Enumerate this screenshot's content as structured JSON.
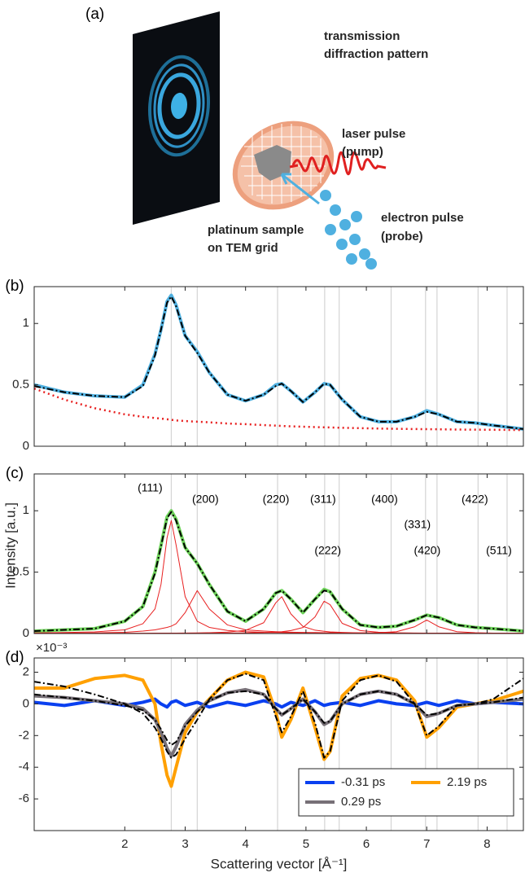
{
  "panel_a": {
    "label": "(a)",
    "pattern_label": [
      "transmission",
      "diffraction pattern"
    ],
    "laser_label": [
      "laser pulse",
      "(pump)"
    ],
    "electron_label": [
      "electron pulse",
      "(probe)"
    ],
    "sample_label": [
      "platinum sample",
      "on TEM grid"
    ]
  },
  "chart_data": [
    {
      "type": "line",
      "panel": "(b)",
      "x": [
        0.5,
        1,
        1.5,
        2,
        2.3,
        2.5,
        2.6,
        2.7,
        2.77,
        2.85,
        3.0,
        3.2,
        3.4,
        3.7,
        4.0,
        4.3,
        4.5,
        4.6,
        4.75,
        4.95,
        5.15,
        5.3,
        5.4,
        5.6,
        5.9,
        6.2,
        6.5,
        6.8,
        7.0,
        7.2,
        7.5,
        7.8,
        8.1,
        8.6
      ],
      "xlim": [
        0.5,
        8.6
      ],
      "xticks": [
        2,
        3,
        4,
        5,
        6,
        7,
        8
      ],
      "ylim": [
        0,
        1.3
      ],
      "yticks": [
        0,
        0.5,
        1
      ],
      "series": [
        {
          "color": "#4fb0e0",
          "linestyle": "solid-thick",
          "values": [
            0.5,
            0.44,
            0.41,
            0.4,
            0.5,
            0.75,
            0.95,
            1.18,
            1.23,
            1.15,
            0.9,
            0.77,
            0.6,
            0.42,
            0.37,
            0.42,
            0.5,
            0.51,
            0.45,
            0.36,
            0.44,
            0.51,
            0.5,
            0.38,
            0.24,
            0.2,
            0.2,
            0.24,
            0.29,
            0.26,
            0.2,
            0.19,
            0.17,
            0.14
          ]
        },
        {
          "color": "#000000",
          "linestyle": "dashdot",
          "values": [
            0.49,
            0.44,
            0.41,
            0.4,
            0.49,
            0.74,
            0.95,
            1.17,
            1.22,
            1.14,
            0.9,
            0.76,
            0.6,
            0.42,
            0.37,
            0.42,
            0.49,
            0.51,
            0.45,
            0.36,
            0.44,
            0.51,
            0.5,
            0.38,
            0.24,
            0.2,
            0.2,
            0.24,
            0.28,
            0.26,
            0.2,
            0.19,
            0.17,
            0.14
          ]
        },
        {
          "color": "#e82020",
          "linestyle": "dotted",
          "values": [
            0.47,
            0.38,
            0.31,
            0.26,
            0.24,
            0.23,
            0.225,
            0.22,
            0.215,
            0.21,
            0.205,
            0.2,
            0.195,
            0.185,
            0.18,
            0.172,
            0.168,
            0.165,
            0.162,
            0.159,
            0.156,
            0.154,
            0.153,
            0.15,
            0.147,
            0.144,
            0.142,
            0.14,
            0.139,
            0.138,
            0.136,
            0.135,
            0.134,
            0.132
          ]
        }
      ]
    },
    {
      "type": "line",
      "panel": "(c)",
      "ylabel": "Intensity [a.u.]",
      "x": [
        0.5,
        1,
        1.5,
        2,
        2.3,
        2.5,
        2.6,
        2.7,
        2.77,
        2.85,
        3.0,
        3.2,
        3.4,
        3.7,
        4.0,
        4.3,
        4.5,
        4.6,
        4.75,
        4.95,
        5.15,
        5.3,
        5.4,
        5.6,
        5.9,
        6.2,
        6.5,
        6.8,
        7.0,
        7.2,
        7.5,
        7.8,
        8.1,
        8.6
      ],
      "xlim": [
        0.5,
        8.6
      ],
      "xticks": [
        2,
        3,
        4,
        5,
        6,
        7,
        8
      ],
      "ylim": [
        0,
        1.3
      ],
      "yticks": [
        0,
        0.5,
        1
      ],
      "annotations": [
        {
          "label": "(111)",
          "x": 2.77
        },
        {
          "label": "(200)",
          "x": 3.2
        },
        {
          "label": "(220)",
          "x": 4.53
        },
        {
          "label": "(311)",
          "x": 5.31
        },
        {
          "label": "(222)",
          "x": 5.55
        },
        {
          "label": "(400)",
          "x": 6.41
        },
        {
          "label": "(331)",
          "x": 6.98
        },
        {
          "label": "(420)",
          "x": 7.17
        },
        {
          "label": "(422)",
          "x": 7.85
        },
        {
          "label": "(511)",
          "x": 8.33
        }
      ],
      "series": [
        {
          "color": "#6ed35a",
          "linestyle": "solid-thick",
          "values": [
            0.02,
            0.03,
            0.04,
            0.1,
            0.22,
            0.5,
            0.72,
            0.95,
            1.0,
            0.93,
            0.7,
            0.57,
            0.4,
            0.18,
            0.1,
            0.2,
            0.33,
            0.35,
            0.28,
            0.17,
            0.28,
            0.36,
            0.34,
            0.2,
            0.07,
            0.05,
            0.06,
            0.11,
            0.15,
            0.13,
            0.07,
            0.05,
            0.04,
            0.02
          ]
        },
        {
          "color": "#e82020",
          "linestyle": "solid",
          "values": [
            0.005,
            0.008,
            0.013,
            0.03,
            0.08,
            0.2,
            0.4,
            0.78,
            0.92,
            0.72,
            0.3,
            0.1,
            0.05,
            0.025,
            0.015,
            0.01,
            0.009,
            0.008,
            0.007,
            0.006,
            0.005,
            0.005,
            0.005,
            0.004,
            0.004,
            0.003,
            0.003,
            0.003,
            0.003,
            0.002,
            0.002,
            0.002,
            0.002,
            0.002
          ]
        },
        {
          "color": "#e82020",
          "linestyle": "solid",
          "values": [
            0.002,
            0.003,
            0.005,
            0.01,
            0.02,
            0.03,
            0.04,
            0.05,
            0.06,
            0.08,
            0.17,
            0.35,
            0.2,
            0.07,
            0.03,
            0.02,
            0.015,
            0.013,
            0.011,
            0.009,
            0.008,
            0.007,
            0.007,
            0.006,
            0.005,
            0.004,
            0.004,
            0.003,
            0.003,
            0.003,
            0.003,
            0.002,
            0.002,
            0.002
          ]
        },
        {
          "color": "#e82020",
          "linestyle": "solid",
          "values": [
            0.001,
            0.001,
            0.002,
            0.002,
            0.002,
            0.003,
            0.003,
            0.003,
            0.003,
            0.003,
            0.004,
            0.005,
            0.007,
            0.012,
            0.026,
            0.088,
            0.25,
            0.3,
            0.16,
            0.058,
            0.027,
            0.018,
            0.013,
            0.009,
            0.005,
            0.004,
            0.003,
            0.002,
            0.002,
            0.002,
            0.002,
            0.001,
            0.001,
            0.001
          ]
        },
        {
          "color": "#e82020",
          "linestyle": "solid",
          "values": [
            0.001,
            0.001,
            0.001,
            0.002,
            0.002,
            0.002,
            0.002,
            0.002,
            0.002,
            0.002,
            0.003,
            0.003,
            0.004,
            0.004,
            0.005,
            0.008,
            0.012,
            0.015,
            0.024,
            0.049,
            0.135,
            0.263,
            0.235,
            0.083,
            0.024,
            0.011,
            0.006,
            0.004,
            0.003,
            0.003,
            0.002,
            0.002,
            0.002,
            0.001
          ]
        },
        {
          "color": "#e82020",
          "linestyle": "solid",
          "values": [
            0.001,
            0.001,
            0.001,
            0.001,
            0.001,
            0.001,
            0.001,
            0.001,
            0.001,
            0.001,
            0.001,
            0.001,
            0.001,
            0.002,
            0.002,
            0.002,
            0.002,
            0.002,
            0.002,
            0.002,
            0.002,
            0.002,
            0.003,
            0.003,
            0.0035,
            0.0065,
            0.015,
            0.055,
            0.11,
            0.055,
            0.015,
            0.007,
            0.0035,
            0.0017
          ]
        },
        {
          "color": "#000000",
          "linestyle": "dashdot",
          "values": [
            0.02,
            0.03,
            0.04,
            0.1,
            0.22,
            0.49,
            0.71,
            0.94,
            0.99,
            0.92,
            0.7,
            0.57,
            0.4,
            0.18,
            0.1,
            0.2,
            0.33,
            0.35,
            0.28,
            0.17,
            0.28,
            0.35,
            0.34,
            0.2,
            0.07,
            0.05,
            0.06,
            0.11,
            0.15,
            0.13,
            0.07,
            0.05,
            0.04,
            0.02
          ]
        }
      ]
    },
    {
      "type": "line",
      "panel": "(d)",
      "y_multiplier": "×10⁻³",
      "xlabel": "Scattering vector [Å⁻¹]",
      "x": [
        0.5,
        1,
        1.5,
        2,
        2.3,
        2.5,
        2.6,
        2.7,
        2.77,
        2.85,
        3.0,
        3.2,
        3.4,
        3.7,
        4.0,
        4.3,
        4.5,
        4.6,
        4.75,
        4.95,
        5.15,
        5.3,
        5.4,
        5.6,
        5.9,
        6.2,
        6.5,
        6.8,
        7.0,
        7.2,
        7.5,
        7.8,
        8.1,
        8.6
      ],
      "xlim": [
        0.5,
        8.6
      ],
      "xticks": [
        2,
        3,
        4,
        5,
        6,
        7,
        8
      ],
      "ylim": [
        -8,
        2.9
      ],
      "yticks": [
        -6,
        -4,
        -2,
        0,
        2
      ],
      "legend": "lower right",
      "series": [
        {
          "name": "-0.31 ps",
          "color": "#0a40f0",
          "linestyle": "solid-thick",
          "values": [
            0.1,
            -0.1,
            0.2,
            -0.1,
            0.1,
            0.3,
            0,
            -0.2,
            0.1,
            0.2,
            -0.1,
            0.1,
            -0.2,
            0.1,
            -0.1,
            0.2,
            0,
            -0.2,
            0.1,
            -0.1,
            0.2,
            -0.1,
            0,
            0.1,
            -0.1,
            0.2,
            0,
            -0.1,
            0.1,
            -0.1,
            0.2,
            0,
            0.1,
            0
          ]
        },
        {
          "name": "2.19 ps",
          "color": "#ffa000",
          "linestyle": "solid-thick",
          "values": [
            1.0,
            1.0,
            1.6,
            1.8,
            1.5,
            0,
            -2.5,
            -4.5,
            -5.2,
            -4.0,
            -1.8,
            -0.5,
            0.3,
            1.5,
            2.0,
            1.7,
            -0.5,
            -2.1,
            -1.0,
            1.0,
            -1.5,
            -3.5,
            -3.0,
            0.5,
            1.6,
            1.8,
            1.5,
            0.2,
            -2.1,
            -1.5,
            -0.2,
            0,
            0.2,
            0.8
          ]
        },
        {
          "name": "0.29 ps",
          "color": "#777077",
          "linestyle": "solid-thick",
          "values": [
            0.5,
            0.4,
            0.2,
            0,
            -0.3,
            -1.0,
            -1.8,
            -2.8,
            -3.3,
            -2.7,
            -1.3,
            -0.4,
            0.2,
            0.7,
            0.9,
            0.6,
            -0.3,
            -0.7,
            -0.3,
            0.3,
            -0.5,
            -1.3,
            -1.1,
            0,
            0.6,
            0.8,
            0.6,
            0,
            -0.8,
            -0.6,
            -0.1,
            0,
            0.1,
            0.3
          ]
        },
        {
          "color": "#000000",
          "linestyle": "dashdot",
          "values": [
            1.4,
            1.1,
            0.6,
            0.0,
            -0.6,
            -1.5,
            -2.2,
            -3.0,
            -3.4,
            -3.2,
            -2.2,
            -1.0,
            0.3,
            1.5,
            1.9,
            1.5,
            -0.8,
            -1.8,
            -0.8,
            0.8,
            -1.2,
            -3.4,
            -3.0,
            0.2,
            1.5,
            1.8,
            1.4,
            0,
            -2.0,
            -1.4,
            -0.1,
            0,
            0.3,
            1.6
          ]
        },
        {
          "color": "#000000",
          "linestyle": "dashdot",
          "values": [
            0.6,
            0.4,
            0.2,
            -0.1,
            -0.4,
            -1.0,
            -1.6,
            -2.3,
            -2.6,
            -2.4,
            -1.4,
            -0.5,
            0.2,
            0.7,
            0.8,
            0.6,
            -0.3,
            -0.7,
            -0.3,
            0.3,
            -0.5,
            -1.2,
            -1.1,
            0,
            0.6,
            0.8,
            0.6,
            0,
            -0.7,
            -0.6,
            -0.1,
            0,
            0.1,
            0.4
          ]
        }
      ]
    }
  ]
}
